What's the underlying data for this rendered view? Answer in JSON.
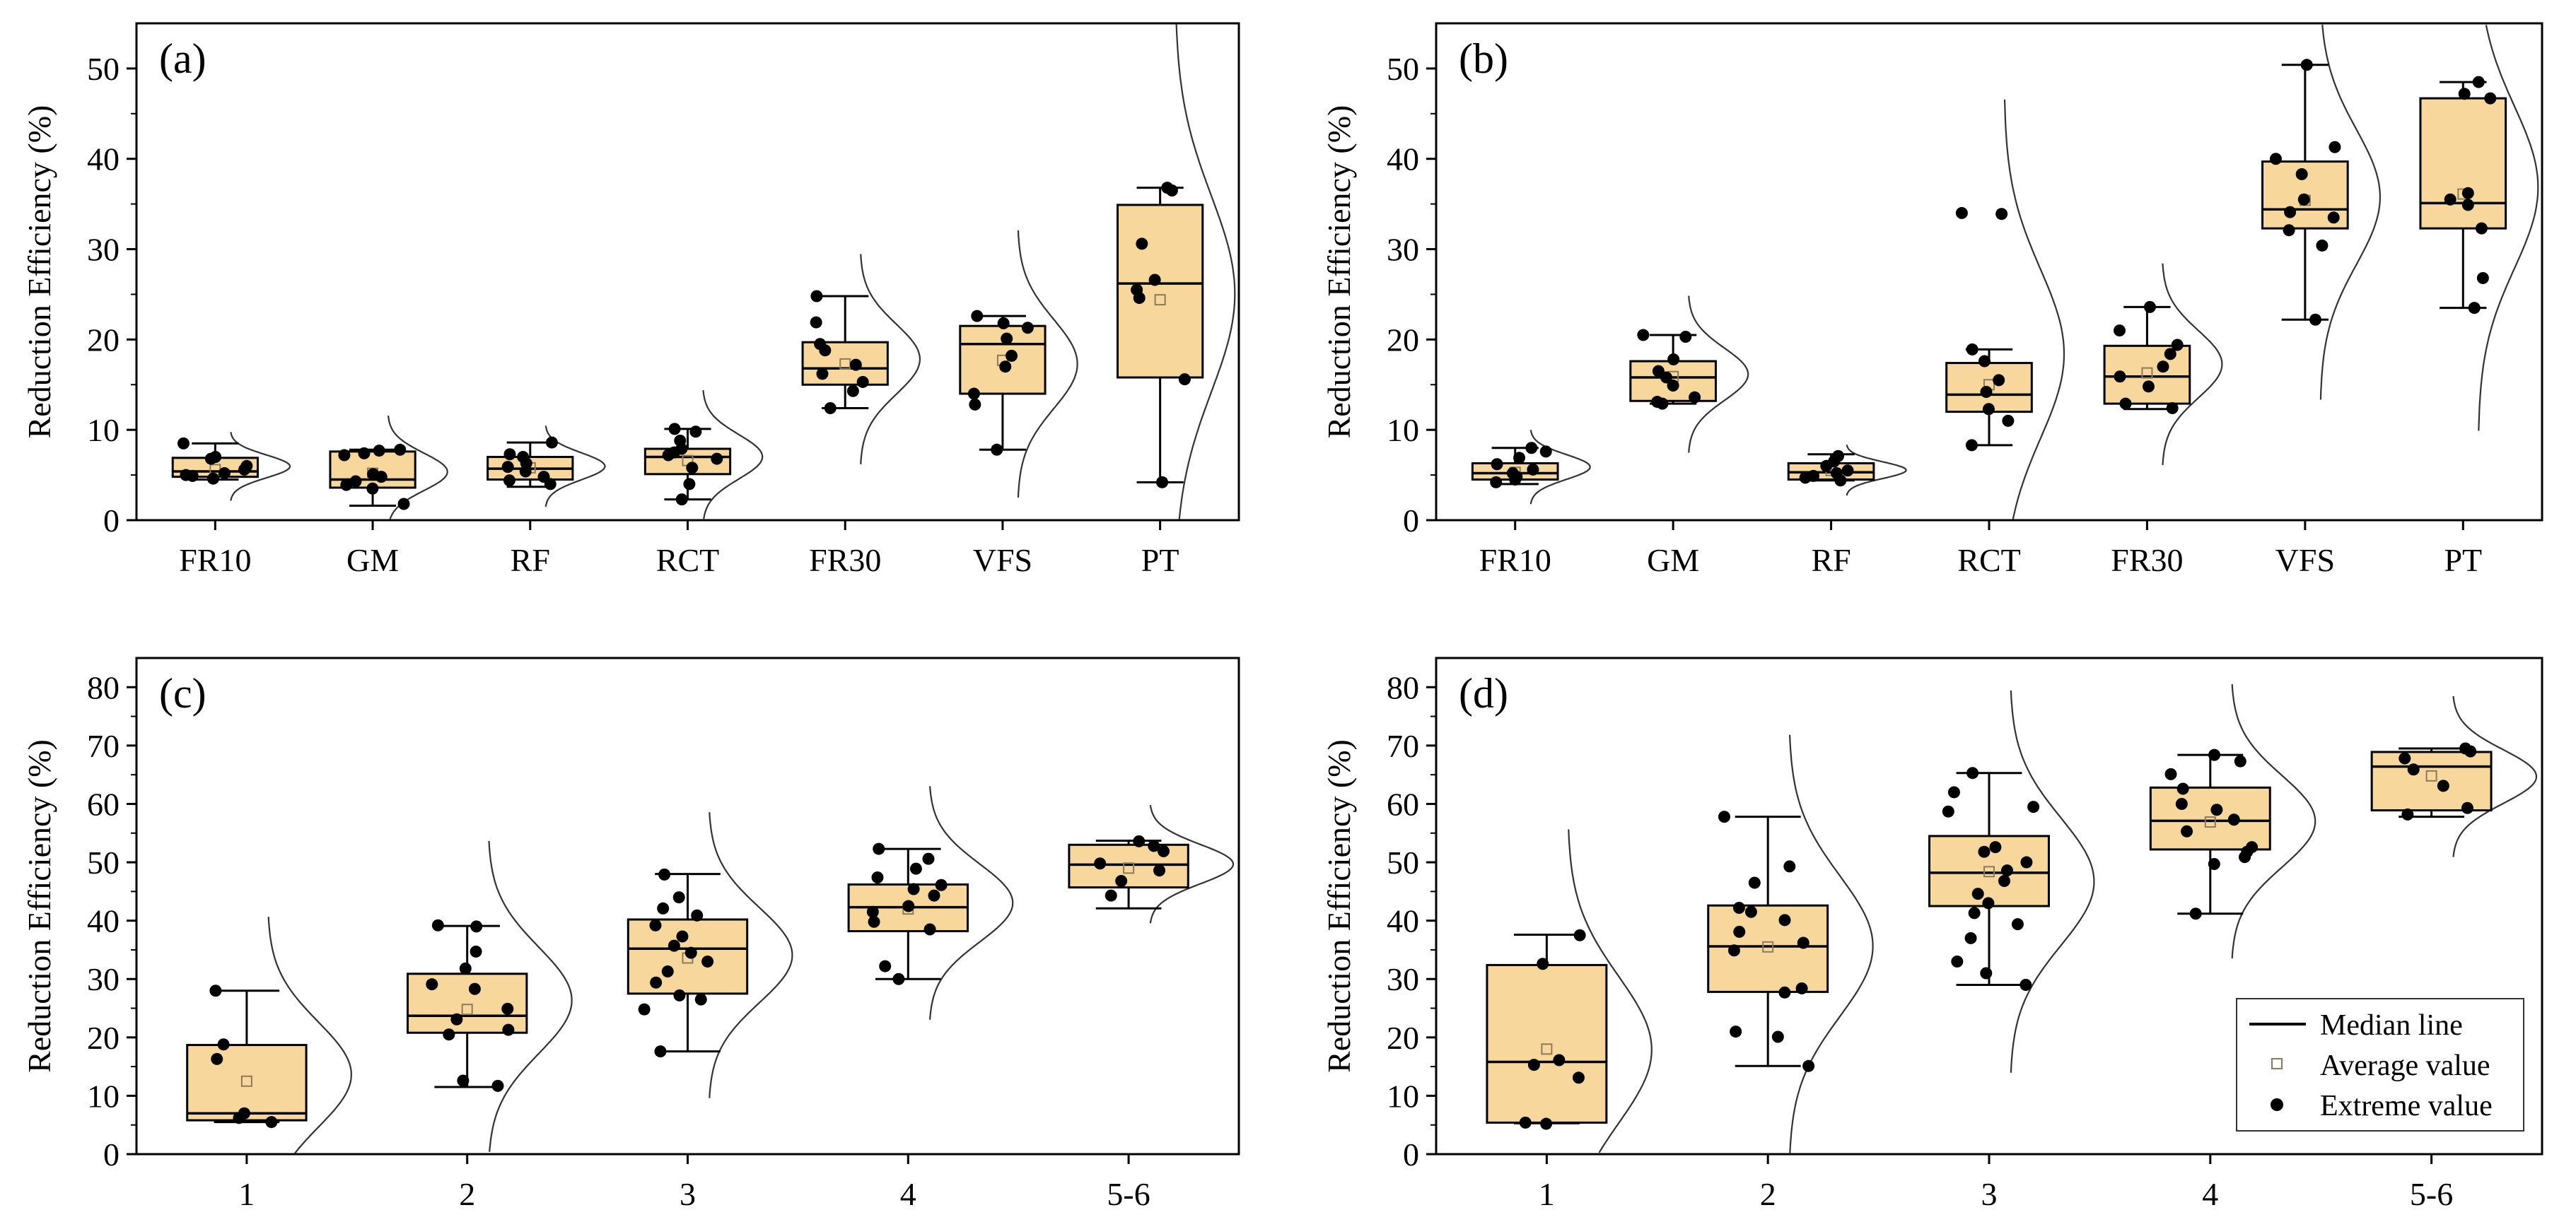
{
  "figure": {
    "box_fill": "#f7d79b",
    "legend": {
      "entries": [
        "Median line",
        "Average value",
        "Extreme value"
      ]
    }
  },
  "chart_data": [
    {
      "type": "box",
      "id": "a",
      "label": "(a)",
      "ylabel": "Reduction Efficiency (%)",
      "ylim": [
        0,
        55
      ],
      "yticks": [
        0,
        10,
        20,
        30,
        40,
        50
      ],
      "categories": [
        "FR10",
        "GM",
        "RF",
        "RCT",
        "FR30",
        "VFS",
        "PT"
      ],
      "boxes": [
        {
          "whisker_low": 4.5,
          "q1": 4.8,
          "median": 5.4,
          "q3": 6.9,
          "whisker_high": 8.5,
          "mean": 5.6,
          "points": [
            4.6,
            4.9,
            5.0,
            5.2,
            5.6,
            6.0,
            6.8,
            7.0,
            8.5
          ]
        },
        {
          "whisker_low": 1.6,
          "q1": 3.6,
          "median": 4.5,
          "q3": 7.6,
          "whisker_high": 7.8,
          "mean": 5.2,
          "points": [
            1.8,
            3.5,
            3.9,
            4.3,
            4.8,
            5.1,
            7.2,
            7.4,
            7.7,
            7.8
          ]
        },
        {
          "whisker_low": 3.7,
          "q1": 4.5,
          "median": 5.7,
          "q3": 7.0,
          "whisker_high": 8.6,
          "mean": 5.8,
          "points": [
            4.0,
            4.4,
            4.8,
            5.4,
            5.9,
            6.3,
            7.0,
            7.3,
            8.6
          ]
        },
        {
          "whisker_low": 2.3,
          "q1": 5.1,
          "median": 7.0,
          "q3": 7.9,
          "whisker_high": 10.1,
          "mean": 6.6,
          "points": [
            2.3,
            4.0,
            5.8,
            6.8,
            7.2,
            7.5,
            7.9,
            8.8,
            9.8,
            10.1
          ]
        },
        {
          "whisker_low": 12.4,
          "q1": 15.0,
          "median": 16.8,
          "q3": 19.7,
          "whisker_high": 24.8,
          "mean": 17.3,
          "points": [
            12.4,
            14.3,
            15.3,
            16.2,
            17.2,
            18.8,
            19.5,
            21.9,
            24.8
          ]
        },
        {
          "whisker_low": 7.8,
          "q1": 14.0,
          "median": 19.5,
          "q3": 21.5,
          "whisker_high": 22.6,
          "mean": 17.7,
          "points": [
            7.8,
            12.8,
            14.0,
            17.0,
            18.2,
            20.1,
            21.3,
            21.8,
            22.6
          ]
        },
        {
          "whisker_low": 4.2,
          "q1": 15.8,
          "median": 26.2,
          "q3": 34.9,
          "whisker_high": 36.8,
          "mean": 24.4,
          "points": [
            4.2,
            15.6,
            24.6,
            25.5,
            26.6,
            30.6,
            36.5,
            36.8
          ]
        }
      ]
    },
    {
      "type": "box",
      "id": "b",
      "label": "(b)",
      "ylabel": "Reduction Efficiency (%)",
      "ylim": [
        0,
        55
      ],
      "yticks": [
        0,
        10,
        20,
        30,
        40,
        50
      ],
      "categories": [
        "FR10",
        "GM",
        "RF",
        "RCT",
        "FR30",
        "VFS",
        "PT"
      ],
      "boxes": [
        {
          "whisker_low": 4.0,
          "q1": 4.5,
          "median": 5.2,
          "q3": 6.3,
          "whisker_high": 8.0,
          "mean": 5.3,
          "points": [
            4.2,
            4.5,
            4.8,
            5.2,
            5.6,
            6.2,
            6.9,
            7.6,
            8.0
          ]
        },
        {
          "whisker_low": 12.9,
          "q1": 13.2,
          "median": 15.8,
          "q3": 17.6,
          "whisker_high": 20.5,
          "mean": 15.9,
          "points": [
            12.9,
            13.1,
            13.6,
            14.9,
            15.8,
            16.5,
            17.8,
            20.3,
            20.5
          ]
        },
        {
          "whisker_low": 4.4,
          "q1": 4.5,
          "median": 5.3,
          "q3": 6.3,
          "whisker_high": 7.3,
          "mean": 5.5,
          "points": [
            4.4,
            4.7,
            4.9,
            5.2,
            5.5,
            6.0,
            6.5,
            7.1
          ]
        },
        {
          "whisker_low": 8.3,
          "q1": 12.0,
          "median": 13.9,
          "q3": 17.4,
          "whisker_high": 18.9,
          "mean": 15.0,
          "points": [
            8.3,
            11.0,
            12.3,
            14.2,
            15.5,
            17.6,
            18.9,
            33.9,
            34.0
          ]
        },
        {
          "whisker_low": 12.3,
          "q1": 12.9,
          "median": 15.9,
          "q3": 19.3,
          "whisker_high": 23.6,
          "mean": 16.3,
          "points": [
            12.4,
            12.9,
            14.8,
            15.9,
            17.0,
            18.4,
            19.4,
            21.0,
            23.6
          ]
        },
        {
          "whisker_low": 22.2,
          "q1": 32.3,
          "median": 34.4,
          "q3": 39.7,
          "whisker_high": 50.4,
          "mean": 35.4,
          "points": [
            22.2,
            30.4,
            32.1,
            33.5,
            34.1,
            35.5,
            38.3,
            40.0,
            41.3,
            50.4
          ]
        },
        {
          "whisker_low": 23.5,
          "q1": 32.3,
          "median": 35.1,
          "q3": 46.7,
          "whisker_high": 48.5,
          "mean": 36.1,
          "points": [
            23.5,
            26.8,
            32.3,
            34.9,
            35.5,
            36.2,
            46.7,
            47.2,
            48.5
          ]
        }
      ]
    },
    {
      "type": "box",
      "id": "c",
      "label": "(c)",
      "ylabel": "Reduction Efficiency (%)",
      "ylim": [
        0,
        85
      ],
      "yticks": [
        0,
        10,
        20,
        30,
        40,
        50,
        60,
        70,
        80
      ],
      "categories": [
        "1",
        "2",
        "3",
        "4",
        "5-6"
      ],
      "boxes": [
        {
          "whisker_low": 5.5,
          "q1": 5.8,
          "median": 7.0,
          "q3": 18.7,
          "whisker_high": 28.0,
          "mean": 12.5,
          "points": [
            5.5,
            6.2,
            7.0,
            16.3,
            18.8,
            28.0
          ]
        },
        {
          "whisker_low": 11.5,
          "q1": 20.8,
          "median": 23.7,
          "q3": 30.9,
          "whisker_high": 39.1,
          "mean": 24.8,
          "points": [
            11.7,
            12.6,
            20.5,
            21.3,
            23.1,
            24.9,
            28.3,
            29.1,
            31.8,
            34.7,
            39.0,
            39.2
          ]
        },
        {
          "whisker_low": 17.6,
          "q1": 27.5,
          "median": 35.2,
          "q3": 40.2,
          "whisker_high": 48.0,
          "mean": 33.6,
          "points": [
            17.6,
            24.8,
            26.5,
            27.2,
            29.4,
            31.3,
            33.0,
            34.5,
            35.7,
            37.3,
            39.2,
            40.9,
            42.1,
            44.0,
            47.9
          ]
        },
        {
          "whisker_low": 30.0,
          "q1": 38.2,
          "median": 42.3,
          "q3": 46.2,
          "whisker_high": 52.3,
          "mean": 42.0,
          "points": [
            30.0,
            32.2,
            38.5,
            39.8,
            41.5,
            42.5,
            44.3,
            45.4,
            46.1,
            47.4,
            48.9,
            50.6,
            52.3
          ]
        },
        {
          "whisker_low": 42.1,
          "q1": 45.7,
          "median": 49.6,
          "q3": 53.0,
          "whisker_high": 53.7,
          "mean": 49.0,
          "points": [
            44.3,
            46.8,
            48.6,
            49.8,
            51.9,
            52.8,
            53.6
          ]
        }
      ]
    },
    {
      "type": "box",
      "id": "d",
      "label": "(d)",
      "ylabel": "Reduction Efficiency (%)",
      "ylim": [
        0,
        85
      ],
      "yticks": [
        0,
        10,
        20,
        30,
        40,
        50,
        60,
        70,
        80
      ],
      "categories": [
        "1",
        "2",
        "3",
        "4",
        "5-6"
      ],
      "boxes": [
        {
          "whisker_low": 5.3,
          "q1": 5.4,
          "median": 15.8,
          "q3": 32.4,
          "whisker_high": 37.6,
          "mean": 18.0,
          "points": [
            5.2,
            5.4,
            13.1,
            15.3,
            16.1,
            32.6,
            37.5
          ]
        },
        {
          "whisker_low": 15.1,
          "q1": 27.8,
          "median": 35.6,
          "q3": 42.6,
          "whisker_high": 57.8,
          "mean": 35.5,
          "points": [
            15.1,
            20.1,
            21.0,
            27.7,
            28.4,
            34.9,
            36.2,
            38.1,
            40.1,
            41.5,
            42.2,
            46.5,
            49.3,
            57.8
          ]
        },
        {
          "whisker_low": 29.0,
          "q1": 42.5,
          "median": 48.2,
          "q3": 54.5,
          "whisker_high": 65.3,
          "mean": 48.4,
          "points": [
            29.0,
            31.0,
            33.0,
            37.0,
            39.4,
            41.3,
            43.0,
            44.6,
            46.8,
            48.6,
            50.0,
            51.8,
            52.6,
            58.7,
            59.5,
            62.0,
            65.3
          ]
        },
        {
          "whisker_low": 41.2,
          "q1": 52.2,
          "median": 57.1,
          "q3": 62.8,
          "whisker_high": 68.4,
          "mean": 56.9,
          "points": [
            41.2,
            49.7,
            50.9,
            51.8,
            52.6,
            55.3,
            57.3,
            59.0,
            60.0,
            62.6,
            65.1,
            67.3,
            68.4
          ]
        },
        {
          "whisker_low": 57.8,
          "q1": 58.9,
          "median": 66.4,
          "q3": 68.9,
          "whisker_high": 69.5,
          "mean": 64.8,
          "points": [
            58.2,
            59.3,
            63.1,
            65.9,
            67.8,
            69.0,
            69.5
          ]
        }
      ]
    }
  ]
}
